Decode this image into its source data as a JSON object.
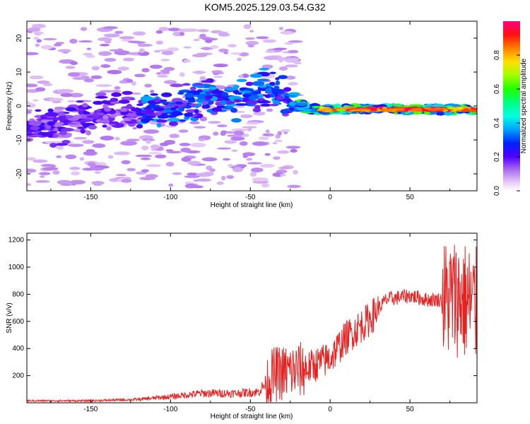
{
  "title": "KOM5.2025.129.03.54.G32",
  "chart_data": [
    {
      "type": "heatmap",
      "xlabel": "Height of straight line (km)",
      "ylabel": "Frequency (Hz)",
      "xlim": [
        -190,
        92
      ],
      "ylim": [
        -25,
        25
      ],
      "xticks": [
        -150,
        -100,
        -50,
        0,
        50
      ],
      "yticks": [
        -20,
        -10,
        0,
        10,
        20
      ],
      "colorbar": {
        "label": "Normalized spectral amplitude",
        "range": [
          0,
          1
        ],
        "ticks": [
          0.0,
          0.2,
          0.4,
          0.6,
          0.8
        ]
      },
      "ridge": {
        "description_points": [
          {
            "x": -190,
            "f": -7
          },
          {
            "x": -150,
            "f": -3
          },
          {
            "x": -120,
            "f": -2
          },
          {
            "x": -100,
            "f": -1
          },
          {
            "x": -80,
            "f": 3
          },
          {
            "x": -60,
            "f": 2
          },
          {
            "x": -40,
            "f": 5
          },
          {
            "x": -25,
            "f": 1
          },
          {
            "x": -10,
            "f": -1
          },
          {
            "x": 0,
            "f": -1
          },
          {
            "x": 40,
            "f": -1
          },
          {
            "x": 92,
            "f": -1
          }
        ]
      }
    },
    {
      "type": "line",
      "xlabel": "Height of straight line (km)",
      "ylabel": "SNR (v/v)",
      "xlim": [
        -190,
        92
      ],
      "ylim": [
        0,
        1250
      ],
      "xticks": [
        -150,
        -100,
        -50,
        0,
        50
      ],
      "yticks": [
        200,
        400,
        600,
        800,
        1000,
        1200
      ],
      "series": [
        {
          "color": "#e82020",
          "trend": [
            {
              "x": -190,
              "y": 15
            },
            {
              "x": -150,
              "y": 15
            },
            {
              "x": -120,
              "y": 25
            },
            {
              "x": -100,
              "y": 45
            },
            {
              "x": -80,
              "y": 70
            },
            {
              "x": -60,
              "y": 70
            },
            {
              "x": -45,
              "y": 80
            },
            {
              "x": -35,
              "y": 210
            },
            {
              "x": -25,
              "y": 230
            },
            {
              "x": -15,
              "y": 250
            },
            {
              "x": 0,
              "y": 330
            },
            {
              "x": 10,
              "y": 480
            },
            {
              "x": 25,
              "y": 620
            },
            {
              "x": 35,
              "y": 760
            },
            {
              "x": 50,
              "y": 790
            },
            {
              "x": 60,
              "y": 760
            },
            {
              "x": 70,
              "y": 760
            },
            {
              "x": 80,
              "y": 780
            },
            {
              "x": 92,
              "y": 700
            }
          ]
        }
      ]
    }
  ]
}
